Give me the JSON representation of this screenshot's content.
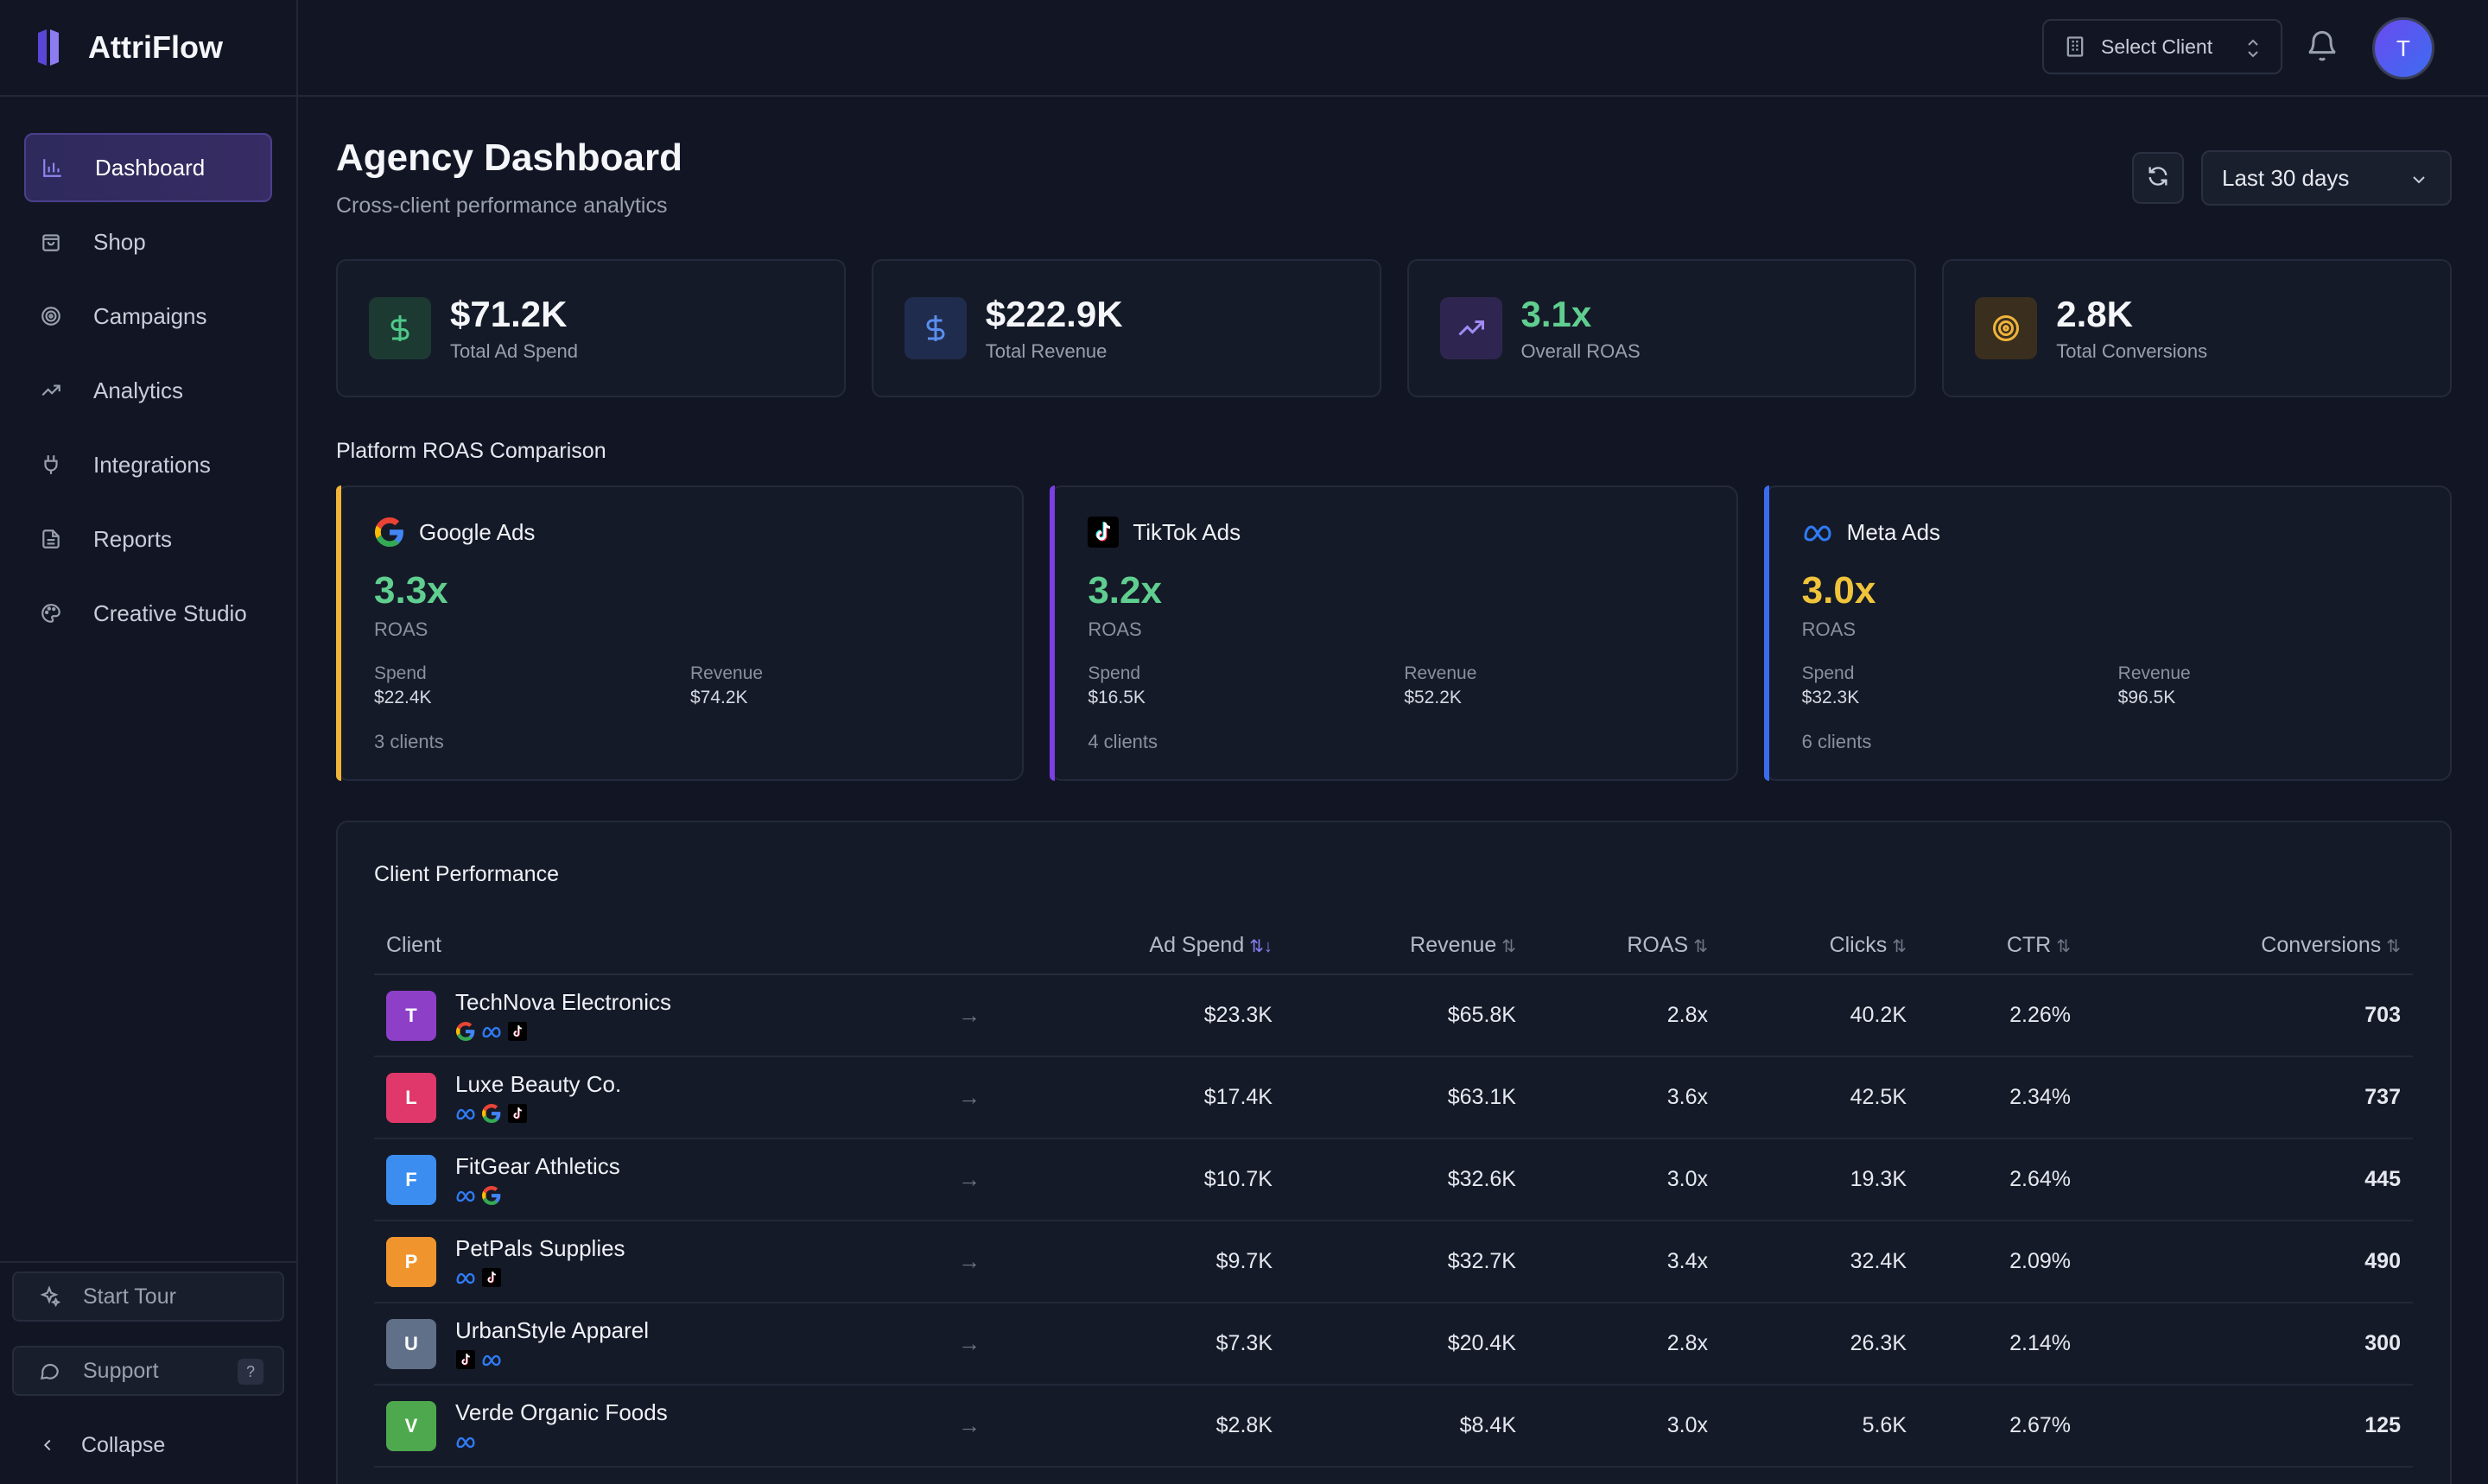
{
  "app": {
    "name": "AttriFlow"
  },
  "sidebar": {
    "items": [
      {
        "label": "Dashboard",
        "icon": "bar-chart-icon"
      },
      {
        "label": "Shop",
        "icon": "shopping-bag-icon"
      },
      {
        "label": "Campaigns",
        "icon": "target-icon"
      },
      {
        "label": "Analytics",
        "icon": "trending-up-icon"
      },
      {
        "label": "Integrations",
        "icon": "plug-icon"
      },
      {
        "label": "Reports",
        "icon": "file-text-icon"
      },
      {
        "label": "Creative Studio",
        "icon": "palette-icon"
      }
    ],
    "start_tour": "Start Tour",
    "support": "Support",
    "support_badge": "?",
    "collapse": "Collapse"
  },
  "topbar": {
    "select_client": "Select Client",
    "avatar_initial": "T"
  },
  "header": {
    "title": "Agency Dashboard",
    "subtitle": "Cross-client performance analytics",
    "date_range": "Last 30 days"
  },
  "kpis": [
    {
      "value": "$71.2K",
      "label": "Total Ad Spend",
      "icon": "dollar-icon",
      "color": "#4fc98a"
    },
    {
      "value": "$222.9K",
      "label": "Total Revenue",
      "icon": "dollar-icon",
      "color": "#5b8def"
    },
    {
      "value": "3.1x",
      "label": "Overall ROAS",
      "icon": "trending-up-icon",
      "color": "#5fce8f"
    },
    {
      "value": "2.8K",
      "label": "Total Conversions",
      "icon": "target-icon",
      "color": "#f0b43a"
    }
  ],
  "platforms_section": "Platform ROAS Comparison",
  "platforms": [
    {
      "name": "Google Ads",
      "roas": "3.3x",
      "roas_label": "ROAS",
      "spend_label": "Spend",
      "spend": "$22.4K",
      "revenue_label": "Revenue",
      "revenue": "$74.2K",
      "clients": "3 clients",
      "accent": "#f0b43a",
      "roas_color": "#5fce8f"
    },
    {
      "name": "TikTok Ads",
      "roas": "3.2x",
      "roas_label": "ROAS",
      "spend_label": "Spend",
      "spend": "$16.5K",
      "revenue_label": "Revenue",
      "revenue": "$52.2K",
      "clients": "4 clients",
      "accent": "#7b3fe4",
      "roas_color": "#5fce8f"
    },
    {
      "name": "Meta Ads",
      "roas": "3.0x",
      "roas_label": "ROAS",
      "spend_label": "Spend",
      "spend": "$32.3K",
      "revenue_label": "Revenue",
      "revenue": "$96.5K",
      "clients": "6 clients",
      "accent": "#3b6cf0",
      "roas_color": "#f0c43a"
    }
  ],
  "performance": {
    "title": "Client Performance",
    "columns": [
      "Client",
      "Ad Spend",
      "Revenue",
      "ROAS",
      "Clicks",
      "CTR",
      "Conversions"
    ],
    "rows": [
      {
        "initial": "T",
        "name": "TechNova Electronics",
        "color": "#8e3fc8",
        "platforms": [
          "google",
          "meta",
          "tiktok"
        ],
        "spend": "$23.3K",
        "revenue": "$65.8K",
        "roas": "2.8x",
        "clicks": "40.2K",
        "ctr": "2.26%",
        "conv": "703"
      },
      {
        "initial": "L",
        "name": "Luxe Beauty Co.",
        "color": "#e0386a",
        "platforms": [
          "meta",
          "google",
          "tiktok"
        ],
        "spend": "$17.4K",
        "revenue": "$63.1K",
        "roas": "3.6x",
        "clicks": "42.5K",
        "ctr": "2.34%",
        "conv": "737"
      },
      {
        "initial": "F",
        "name": "FitGear Athletics",
        "color": "#3b8ef0",
        "platforms": [
          "meta",
          "google"
        ],
        "spend": "$10.7K",
        "revenue": "$32.6K",
        "roas": "3.0x",
        "clicks": "19.3K",
        "ctr": "2.64%",
        "conv": "445"
      },
      {
        "initial": "P",
        "name": "PetPals Supplies",
        "color": "#f0952e",
        "platforms": [
          "meta",
          "tiktok"
        ],
        "spend": "$9.7K",
        "revenue": "$32.7K",
        "roas": "3.4x",
        "clicks": "32.4K",
        "ctr": "2.09%",
        "conv": "490"
      },
      {
        "initial": "U",
        "name": "UrbanStyle Apparel",
        "color": "#607088",
        "platforms": [
          "tiktok",
          "meta"
        ],
        "spend": "$7.3K",
        "revenue": "$20.4K",
        "roas": "2.8x",
        "clicks": "26.3K",
        "ctr": "2.14%",
        "conv": "300"
      },
      {
        "initial": "V",
        "name": "Verde Organic Foods",
        "color": "#4ea84e",
        "platforms": [
          "meta"
        ],
        "spend": "$2.8K",
        "revenue": "$8.4K",
        "roas": "3.0x",
        "clicks": "5.6K",
        "ctr": "2.67%",
        "conv": "125"
      }
    ]
  }
}
